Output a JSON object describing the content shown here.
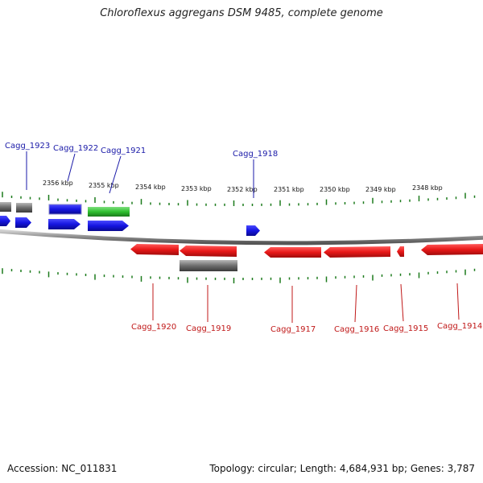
{
  "title": "Chloroflexus aggregans DSM 9485, complete genome",
  "accession_text": "Accession: NC_011831",
  "stats_text": "Topology: circular; Length: 4,684,931 bp; Genes: 3,787",
  "colors": {
    "forward_cds": "#1515e0",
    "reverse_cds": "#e81818",
    "other_gene": "#6e6e6e",
    "rna": "#2fc02f",
    "backbone": "#8a8a8a",
    "tick": "#1c7a1c",
    "label_forward": "#1a1aa8",
    "label_reverse": "#c01818"
  },
  "kbp_ticks": [
    "2356 kbp",
    "2355 kbp",
    "2354 kbp",
    "2353 kbp",
    "2352 kbp",
    "2351 kbp",
    "2350 kbp",
    "2349 kbp",
    "2348 kbp"
  ],
  "gene_labels_forward": [
    "Cagg_1923",
    "Cagg_1922",
    "Cagg_1921",
    "Cagg_1918"
  ],
  "gene_labels_reverse": [
    "Cagg_1920",
    "Cagg_1919",
    "Cagg_1917",
    "Cagg_1916",
    "Cagg_1915",
    "Cagg_1914"
  ]
}
